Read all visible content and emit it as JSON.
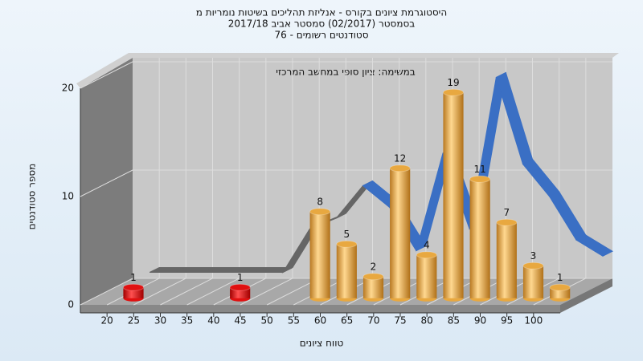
{
  "chart_data": {
    "type": "bar3d",
    "title_lines": [
      "היסטוגרמת ציונים בקורס - אנליזת תהליכים בשיטות נומריות מ",
      "בסמסטר  (02/2017)  סמסטר אביב 2017/18",
      "סטודנטים רשומים - 76"
    ],
    "annotation": "במשימה: ציון סופי במחשב המרכזי",
    "xlabel": "טווח ציונים",
    "ylabel": "מספר סטודנטים",
    "x": [
      20,
      40,
      55,
      60,
      65,
      70,
      75,
      80,
      85,
      90,
      95,
      100
    ],
    "values": [
      1,
      1,
      8,
      5,
      2,
      12,
      4,
      19,
      11,
      7,
      3,
      1
    ],
    "bar_colors": [
      "#e01010",
      "#e01010",
      "#e8a840",
      "#e8a840",
      "#e8a840",
      "#e8a840",
      "#e8a840",
      "#e8a840",
      "#e8a840",
      "#e8a840",
      "#e8a840",
      "#e8a840"
    ],
    "bin_width": 5,
    "curve": {
      "x": [
        20,
        25,
        30,
        35,
        40,
        45,
        50,
        55,
        60,
        65,
        70,
        75,
        80,
        85,
        90,
        95,
        100,
        105
      ],
      "values": [
        1,
        1,
        1,
        1,
        1,
        1,
        5,
        6,
        9,
        7,
        3,
        12,
        5,
        19,
        11,
        8,
        4,
        2.5
      ],
      "colors": [
        "#666666",
        "#666666",
        "#666666",
        "#666666",
        "#666666",
        "#666666",
        "#666666",
        "#666666",
        "#3a6fc4",
        "#3a6fc4",
        "#3a6fc4",
        "#3a6fc4",
        "#3a6fc4",
        "#3a6fc4",
        "#3a6fc4",
        "#3a6fc4",
        "#3a6fc4",
        "#3a6fc4"
      ]
    },
    "xlim": [
      15,
      105
    ],
    "xticks": [
      20,
      25,
      30,
      35,
      40,
      45,
      50,
      55,
      60,
      65,
      70,
      75,
      80,
      85,
      90,
      95,
      100
    ],
    "ylim": [
      0,
      20
    ],
    "yticks": [
      0,
      10,
      20
    ],
    "grid": true
  }
}
